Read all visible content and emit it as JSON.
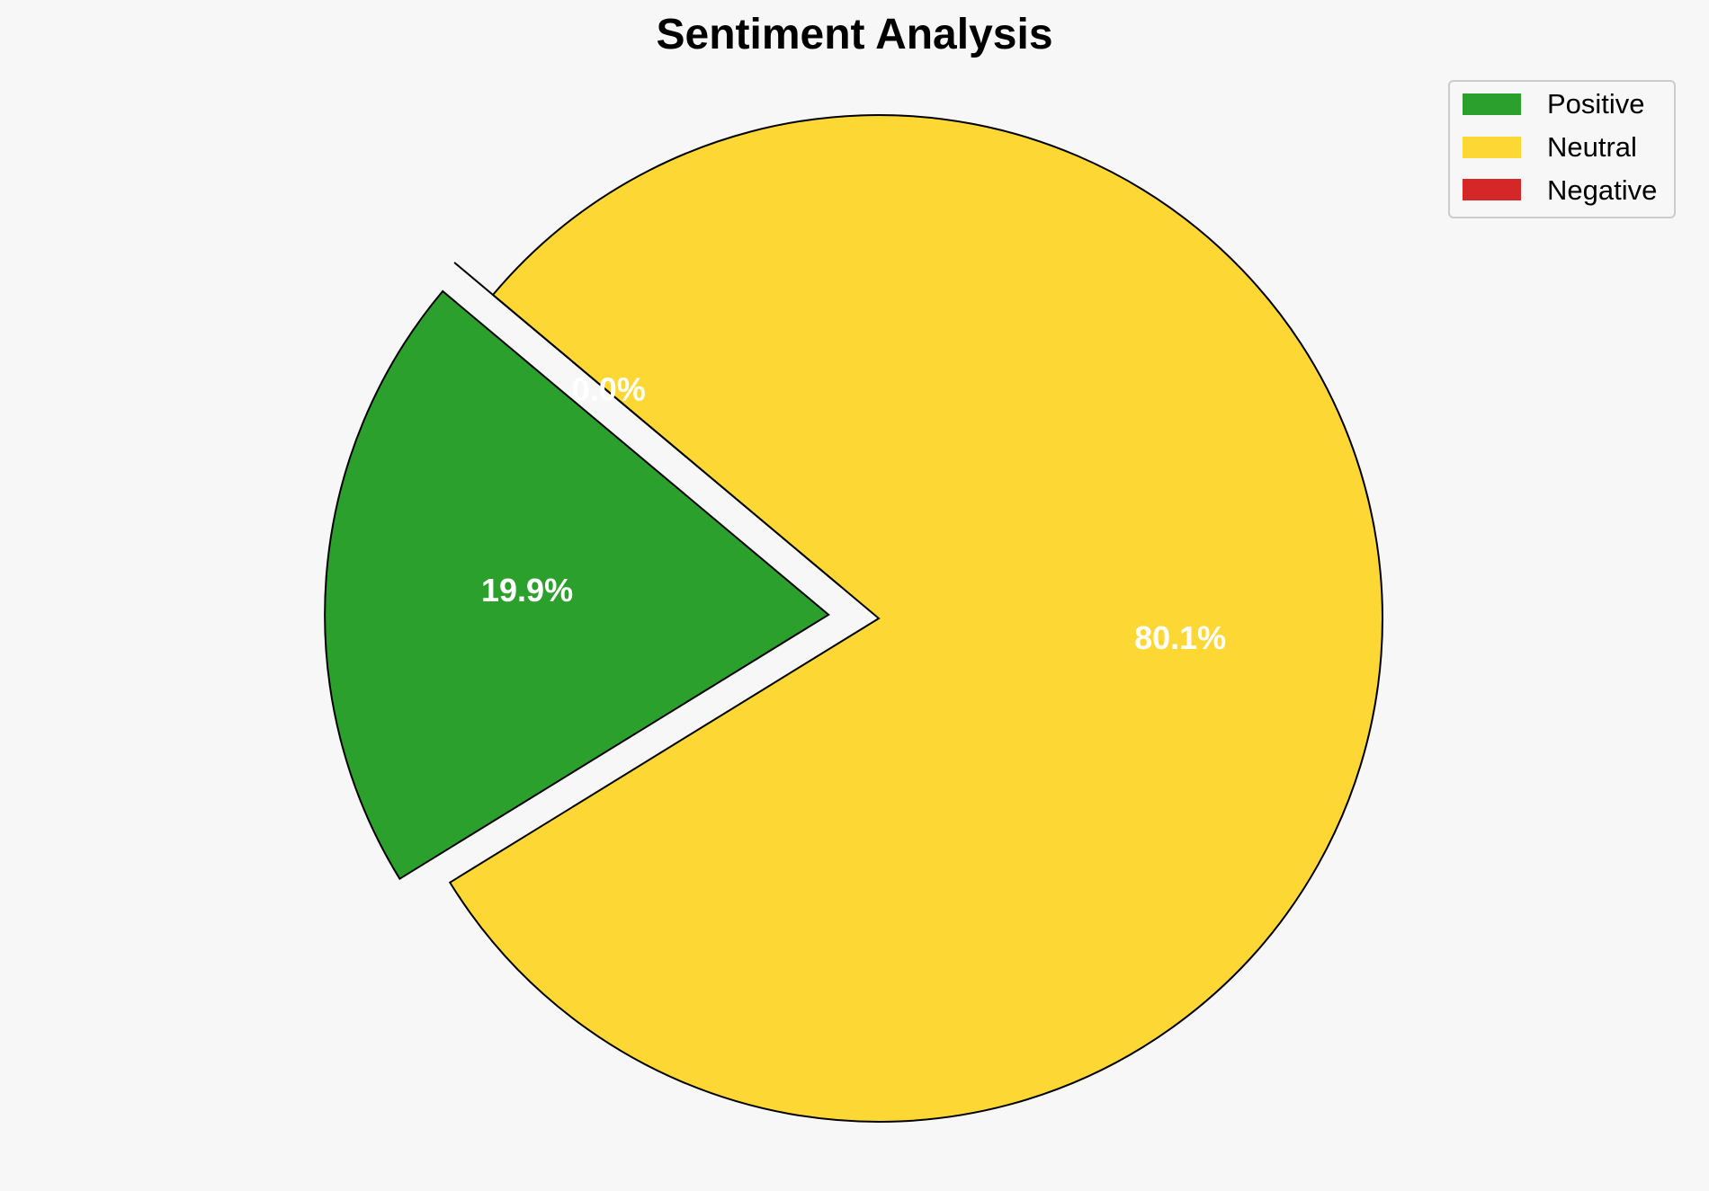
{
  "chart_data": {
    "type": "pie",
    "title": "Sentiment Analysis",
    "categories": [
      "Positive",
      "Neutral",
      "Negative"
    ],
    "values": [
      19.9,
      80.1,
      0.0
    ],
    "labels": [
      "19.9%",
      "80.1%",
      "0.0%"
    ],
    "colors": [
      "#2ca02c",
      "#fdd835",
      "#d62728"
    ],
    "edge_color": "#000000",
    "background": "#f7f7f7",
    "exploded": [
      "Positive",
      "Negative"
    ],
    "start_angle_deg": 140,
    "direction": "counterclockwise",
    "legend": {
      "placement": "top-right",
      "entries": [
        "Positive",
        "Neutral",
        "Negative"
      ]
    }
  }
}
